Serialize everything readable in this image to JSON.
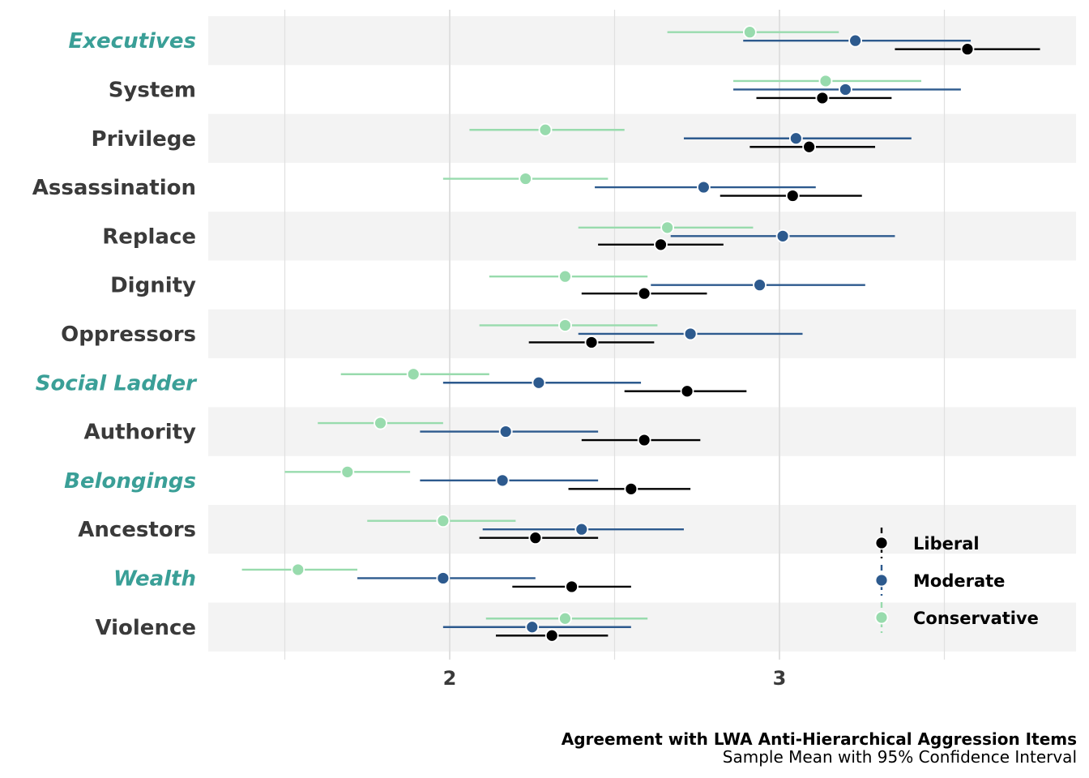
{
  "chart_data": {
    "type": "forest",
    "title": "Agreement with LWA Anti-Hierarchical Aggression Items",
    "subtitle": "Sample Mean with 95% Confidence Interval",
    "xlim": [
      1.27,
      3.9
    ],
    "xticks": [
      2,
      3
    ],
    "xtick_labels": [
      "2",
      "3"
    ],
    "minor_gridlines": [
      1.5,
      2.5,
      3.5
    ],
    "grid": true,
    "legend_position": "bottom-right",
    "categories": [
      "Executives",
      "System",
      "Privilege",
      "Assassination",
      "Replace",
      "Dignity",
      "Oppressors",
      "Social Ladder",
      "Authority",
      "Belongings",
      "Ancestors",
      "Wealth",
      "Violence"
    ],
    "highlighted_categories": [
      "Executives",
      "Social Ladder",
      "Belongings",
      "Wealth"
    ],
    "series": [
      {
        "name": "Liberal",
        "color": "#000000",
        "mean": [
          3.57,
          3.13,
          3.09,
          3.04,
          2.64,
          2.59,
          2.43,
          2.72,
          2.59,
          2.55,
          2.26,
          2.37,
          2.31
        ],
        "lower": [
          3.35,
          2.93,
          2.91,
          2.82,
          2.45,
          2.4,
          2.24,
          2.53,
          2.4,
          2.36,
          2.09,
          2.19,
          2.14
        ],
        "upper": [
          3.79,
          3.34,
          3.29,
          3.25,
          2.83,
          2.78,
          2.62,
          2.9,
          2.76,
          2.73,
          2.45,
          2.55,
          2.48
        ]
      },
      {
        "name": "Moderate",
        "color": "#2d5a8e",
        "mean": [
          3.23,
          3.2,
          3.05,
          2.77,
          3.01,
          2.94,
          2.73,
          2.27,
          2.17,
          2.16,
          2.4,
          1.98,
          2.25
        ],
        "lower": [
          2.89,
          2.86,
          2.71,
          2.44,
          2.67,
          2.61,
          2.39,
          1.98,
          1.91,
          1.91,
          2.1,
          1.72,
          1.98
        ],
        "upper": [
          3.58,
          3.55,
          3.4,
          3.11,
          3.35,
          3.26,
          3.07,
          2.58,
          2.45,
          2.45,
          2.71,
          2.26,
          2.55
        ]
      },
      {
        "name": "Conservative",
        "color": "#98dbad",
        "mean": [
          2.91,
          3.14,
          2.29,
          2.23,
          2.66,
          2.35,
          2.35,
          1.89,
          1.79,
          1.69,
          1.98,
          1.54,
          2.35
        ],
        "lower": [
          2.66,
          2.86,
          2.06,
          1.98,
          2.39,
          2.12,
          2.09,
          1.67,
          1.6,
          1.5,
          1.75,
          1.37,
          2.11
        ],
        "upper": [
          3.18,
          3.43,
          2.53,
          2.48,
          2.92,
          2.6,
          2.63,
          2.12,
          1.98,
          1.88,
          2.2,
          1.72,
          2.6
        ]
      }
    ]
  },
  "colors": {
    "highlight": "#3a9f97",
    "label": "#3a3a3a",
    "band": "#f3f3f3",
    "grid": "#e0e0e0"
  }
}
